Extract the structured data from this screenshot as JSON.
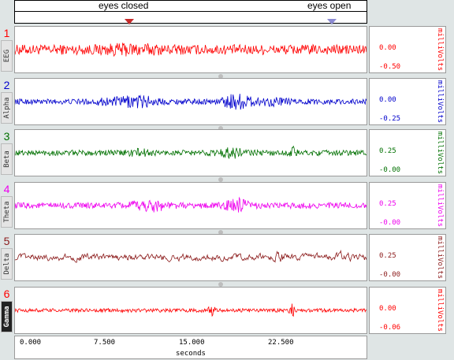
{
  "markers": [
    {
      "label": "eyes closed",
      "color": "#c62a2a"
    },
    {
      "label": "eyes open",
      "color": "#8b8ad2"
    }
  ],
  "channels": [
    {
      "num": "1",
      "name": "EEG",
      "color": "#ff0000",
      "vals": [
        "0.00",
        "-0.50"
      ],
      "unit": "milliVolts",
      "dark": false,
      "amp": 0.22,
      "bursts": [
        [
          0.33,
          0.08,
          1.4
        ]
      ]
    },
    {
      "num": "2",
      "name": "Alpha",
      "color": "#0000cc",
      "vals": [
        "0.00",
        "-0.25"
      ],
      "unit": "milliVolts",
      "dark": false,
      "amp": 0.12,
      "bursts": [
        [
          0.35,
          0.05,
          2.6
        ],
        [
          0.26,
          0.04,
          1.6
        ],
        [
          0.63,
          0.04,
          3.2
        ],
        [
          0.73,
          0.04,
          1.8
        ]
      ]
    },
    {
      "num": "3",
      "name": "Beta",
      "color": "#007000",
      "vals": [
        "0.25",
        "-0.00"
      ],
      "unit": "milliVolts",
      "dark": false,
      "amp": 0.12,
      "bursts": [
        [
          0.35,
          0.03,
          1.9
        ],
        [
          0.62,
          0.04,
          2.2
        ],
        [
          0.79,
          0.01,
          3.0
        ]
      ]
    },
    {
      "num": "4",
      "name": "Theta",
      "color": "#ee00ee",
      "vals": [
        "0.25",
        "-0.00"
      ],
      "unit": "milliVolts",
      "dark": false,
      "amp": 0.13,
      "bursts": [
        [
          0.38,
          0.05,
          2.4
        ],
        [
          0.63,
          0.03,
          2.8
        ]
      ]
    },
    {
      "num": "5",
      "name": "Delta",
      "color": "#8b1a1a",
      "vals": [
        "0.25",
        "-0.00"
      ],
      "unit": "milliVolts",
      "dark": false,
      "amp": 0.16,
      "bursts": [
        [
          0.75,
          0.02,
          1.8
        ],
        [
          0.93,
          0.02,
          1.7
        ]
      ]
    },
    {
      "num": "6",
      "name": "Gamma",
      "color": "#ff0000",
      "vals": [
        "0.00",
        "-0.06"
      ],
      "unit": "milliVolts",
      "dark": true,
      "amp": 0.08,
      "bursts": [
        [
          0.56,
          0.008,
          4.5
        ],
        [
          0.79,
          0.008,
          4.5
        ]
      ]
    }
  ],
  "xaxis": {
    "ticks": [
      "0.000",
      "7.500",
      "15.000",
      "22.500"
    ],
    "label": "seconds"
  }
}
